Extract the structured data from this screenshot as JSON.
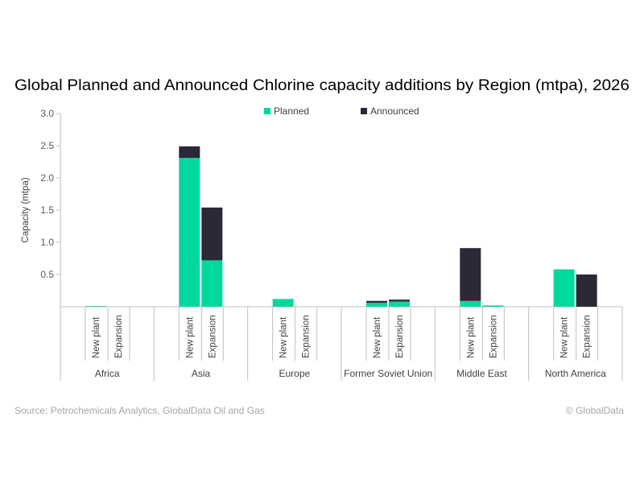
{
  "chart_data": {
    "type": "bar",
    "stacked": true,
    "title": "Global Planned and Announced Chlorine capacity additions by Region (mtpa), 2026",
    "ylabel": "Capacity (mtpa)",
    "xlabel": "",
    "ylim": [
      0,
      3.0
    ],
    "yticks": [
      "0.5",
      "1.0",
      "1.5",
      "2.0",
      "2.5",
      "3.0"
    ],
    "grid": false,
    "legend_position": "top-center",
    "groups": [
      "Africa",
      "Asia",
      "Europe",
      "Former Soviet Union",
      "Middle East",
      "North America"
    ],
    "subcategories": [
      "New plant",
      "Expansion"
    ],
    "series": [
      {
        "name": "Planned",
        "color": "#00d89e",
        "values": [
          [
            0.01,
            0
          ],
          [
            2.31,
            0.72
          ],
          [
            0.12,
            0
          ],
          [
            0.06,
            0.08
          ],
          [
            0.09,
            0.02
          ],
          [
            0.58,
            0
          ]
        ]
      },
      {
        "name": "Announced",
        "color": "#2b2838",
        "values": [
          [
            0,
            0
          ],
          [
            0.18,
            0.82
          ],
          [
            0,
            0
          ],
          [
            0.03,
            0.03
          ],
          [
            0.82,
            0
          ],
          [
            0,
            0.5
          ]
        ]
      }
    ]
  },
  "footer": {
    "source": "Source: Petrochemicals Analytics, GlobalData Oil and Gas",
    "copyright": "© GlobalData"
  }
}
